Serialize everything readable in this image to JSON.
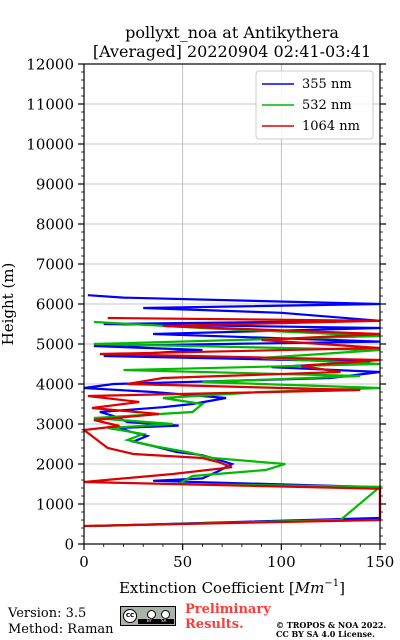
{
  "chart_data": {
    "type": "line",
    "title": "pollyxt_noa at Antikythera",
    "subtitle": "[Averaged] 20220904 02:41-03:41",
    "xlabel": "Extinction Coefficient [",
    "xlabel_unit": "Mm",
    "xlabel_exp": "−1",
    "xlabel_end": "]",
    "ylabel": "Height (m)",
    "xlim": [
      0,
      150
    ],
    "ylim": [
      0,
      12000
    ],
    "x_ticks": [
      0,
      50,
      100,
      150
    ],
    "y_ticks": [
      0,
      1000,
      2000,
      3000,
      4000,
      5000,
      6000,
      7000,
      8000,
      9000,
      10000,
      11000,
      12000
    ],
    "grid": true,
    "legend_position": "top-right",
    "series": [
      {
        "name": "355 nm",
        "color": "#0000ff",
        "points": [
          [
            5,
            450
          ],
          [
            150,
            650
          ],
          [
            150,
            1420
          ],
          [
            35,
            1580
          ],
          [
            60,
            1640
          ],
          [
            68,
            1820
          ],
          [
            75,
            2000
          ],
          [
            65,
            2150
          ],
          [
            60,
            2220
          ],
          [
            47,
            2300
          ],
          [
            35,
            2450
          ],
          [
            25,
            2560
          ],
          [
            32,
            2700
          ],
          [
            24,
            2800
          ],
          [
            18,
            2900
          ],
          [
            48,
            2960
          ],
          [
            22,
            3050
          ],
          [
            15,
            3200
          ],
          [
            8,
            3300
          ],
          [
            40,
            3420
          ],
          [
            55,
            3500
          ],
          [
            72,
            3650
          ],
          [
            35,
            3800
          ],
          [
            0,
            3900
          ],
          [
            15,
            4000
          ],
          [
            125,
            4150
          ],
          [
            150,
            4300
          ],
          [
            95,
            4420
          ],
          [
            145,
            4560
          ],
          [
            10,
            4700
          ],
          [
            60,
            4850
          ],
          [
            5,
            4950
          ],
          [
            150,
            5060
          ],
          [
            35,
            5250
          ],
          [
            150,
            5400
          ],
          [
            10,
            5500
          ],
          [
            150,
            5580
          ],
          [
            100,
            5780
          ],
          [
            30,
            5900
          ],
          [
            150,
            6000
          ],
          [
            20,
            6160
          ],
          [
            2,
            6220
          ]
        ]
      },
      {
        "name": "532 nm",
        "color": "#00bb00",
        "points": [
          [
            3,
            450
          ],
          [
            130,
            600
          ],
          [
            150,
            1430
          ],
          [
            48,
            1500
          ],
          [
            55,
            1700
          ],
          [
            92,
            1850
          ],
          [
            102,
            2000
          ],
          [
            65,
            2150
          ],
          [
            52,
            2300
          ],
          [
            35,
            2450
          ],
          [
            22,
            2600
          ],
          [
            30,
            2750
          ],
          [
            12,
            2900
          ],
          [
            45,
            3000
          ],
          [
            5,
            3150
          ],
          [
            55,
            3300
          ],
          [
            60,
            3500
          ],
          [
            40,
            3650
          ],
          [
            90,
            3800
          ],
          [
            150,
            3900
          ],
          [
            60,
            4050
          ],
          [
            140,
            4200
          ],
          [
            20,
            4350
          ],
          [
            150,
            4500
          ],
          [
            90,
            4650
          ],
          [
            150,
            4850
          ],
          [
            5,
            5000
          ],
          [
            150,
            5200
          ],
          [
            60,
            5400
          ],
          [
            5,
            5550
          ]
        ]
      },
      {
        "name": "1064 nm",
        "color": "#dd0000",
        "points": [
          [
            0,
            450
          ],
          [
            150,
            600
          ],
          [
            150,
            1380
          ],
          [
            0,
            1550
          ],
          [
            45,
            1750
          ],
          [
            75,
            1920
          ],
          [
            68,
            2050
          ],
          [
            60,
            2150
          ],
          [
            25,
            2250
          ],
          [
            12,
            2400
          ],
          [
            8,
            2550
          ],
          [
            4,
            2700
          ],
          [
            0,
            2850
          ],
          [
            18,
            2950
          ],
          [
            5,
            3100
          ],
          [
            38,
            3250
          ],
          [
            4,
            3400
          ],
          [
            28,
            3550
          ],
          [
            2,
            3700
          ],
          [
            140,
            3850
          ],
          [
            22,
            4000
          ],
          [
            40,
            4150
          ],
          [
            130,
            4300
          ],
          [
            110,
            4450
          ],
          [
            150,
            4600
          ],
          [
            8,
            4750
          ],
          [
            150,
            4900
          ],
          [
            90,
            5100
          ],
          [
            150,
            5250
          ],
          [
            40,
            5450
          ],
          [
            150,
            5580
          ],
          [
            12,
            5650
          ]
        ]
      }
    ]
  },
  "footer": {
    "version": "Version: 3.5",
    "method": "Method: Raman",
    "preliminary_line1": "Preliminary",
    "preliminary_line2": "Results.",
    "copyright_line1": "© TROPOS & NOA 2022.",
    "copyright_line2": "CC BY SA 4.0 License.",
    "cc_main": "cc",
    "cc_by": "BY",
    "cc_sa": "SA",
    "colors": {
      "preliminary": "#ff3b3b",
      "cc_badge": "#aab2ab"
    }
  }
}
